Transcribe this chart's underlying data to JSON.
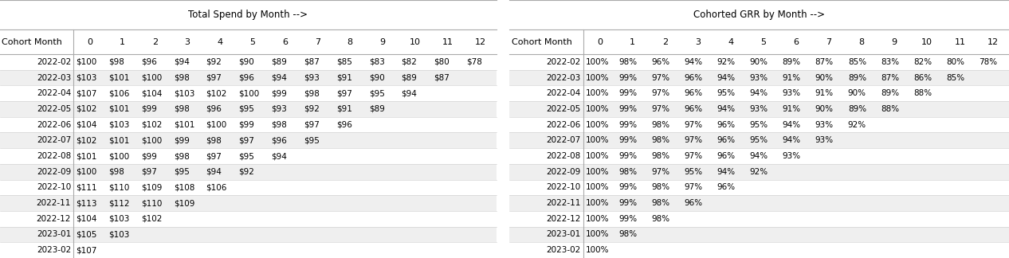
{
  "title_left": "Total Spend by Month -->",
  "title_right": "Cohorted GRR by Month -->",
  "col_header": [
    "Cohort Month",
    "0",
    "1",
    "2",
    "3",
    "4",
    "5",
    "6",
    "7",
    "8",
    "9",
    "10",
    "11",
    "12"
  ],
  "spend_rows": [
    [
      "2022-02",
      "$100",
      "$98",
      "$96",
      "$94",
      "$92",
      "$90",
      "$89",
      "$87",
      "$85",
      "$83",
      "$82",
      "$80",
      "$78"
    ],
    [
      "2022-03",
      "$103",
      "$101",
      "$100",
      "$98",
      "$97",
      "$96",
      "$94",
      "$93",
      "$91",
      "$90",
      "$89",
      "$87",
      ""
    ],
    [
      "2022-04",
      "$107",
      "$106",
      "$104",
      "$103",
      "$102",
      "$100",
      "$99",
      "$98",
      "$97",
      "$95",
      "$94",
      "",
      ""
    ],
    [
      "2022-05",
      "$102",
      "$101",
      "$99",
      "$98",
      "$96",
      "$95",
      "$93",
      "$92",
      "$91",
      "$89",
      "",
      "",
      ""
    ],
    [
      "2022-06",
      "$104",
      "$103",
      "$102",
      "$101",
      "$100",
      "$99",
      "$98",
      "$97",
      "$96",
      "",
      "",
      "",
      ""
    ],
    [
      "2022-07",
      "$102",
      "$101",
      "$100",
      "$99",
      "$98",
      "$97",
      "$96",
      "$95",
      "",
      "",
      "",
      "",
      ""
    ],
    [
      "2022-08",
      "$101",
      "$100",
      "$99",
      "$98",
      "$97",
      "$95",
      "$94",
      "",
      "",
      "",
      "",
      "",
      ""
    ],
    [
      "2022-09",
      "$100",
      "$98",
      "$97",
      "$95",
      "$94",
      "$92",
      "",
      "",
      "",
      "",
      "",
      "",
      ""
    ],
    [
      "2022-10",
      "$111",
      "$110",
      "$109",
      "$108",
      "$106",
      "",
      "",
      "",
      "",
      "",
      "",
      "",
      ""
    ],
    [
      "2022-11",
      "$113",
      "$112",
      "$110",
      "$109",
      "",
      "",
      "",
      "",
      "",
      "",
      "",
      "",
      ""
    ],
    [
      "2022-12",
      "$104",
      "$103",
      "$102",
      "",
      "",
      "",
      "",
      "",
      "",
      "",
      "",
      "",
      ""
    ],
    [
      "2023-01",
      "$105",
      "$103",
      "",
      "",
      "",
      "",
      "",
      "",
      "",
      "",
      "",
      "",
      ""
    ],
    [
      "2023-02",
      "$107",
      "",
      "",
      "",
      "",
      "",
      "",
      "",
      "",
      "",
      "",
      "",
      ""
    ]
  ],
  "grr_rows": [
    [
      "2022-02",
      "100%",
      "98%",
      "96%",
      "94%",
      "92%",
      "90%",
      "89%",
      "87%",
      "85%",
      "83%",
      "82%",
      "80%",
      "78%"
    ],
    [
      "2022-03",
      "100%",
      "99%",
      "97%",
      "96%",
      "94%",
      "93%",
      "91%",
      "90%",
      "89%",
      "87%",
      "86%",
      "85%",
      ""
    ],
    [
      "2022-04",
      "100%",
      "99%",
      "97%",
      "96%",
      "95%",
      "94%",
      "93%",
      "91%",
      "90%",
      "89%",
      "88%",
      "",
      ""
    ],
    [
      "2022-05",
      "100%",
      "99%",
      "97%",
      "96%",
      "94%",
      "93%",
      "91%",
      "90%",
      "89%",
      "88%",
      "",
      "",
      ""
    ],
    [
      "2022-06",
      "100%",
      "99%",
      "98%",
      "97%",
      "96%",
      "95%",
      "94%",
      "93%",
      "92%",
      "",
      "",
      "",
      ""
    ],
    [
      "2022-07",
      "100%",
      "99%",
      "98%",
      "97%",
      "96%",
      "95%",
      "94%",
      "93%",
      "",
      "",
      "",
      "",
      ""
    ],
    [
      "2022-08",
      "100%",
      "99%",
      "98%",
      "97%",
      "96%",
      "94%",
      "93%",
      "",
      "",
      "",
      "",
      "",
      ""
    ],
    [
      "2022-09",
      "100%",
      "98%",
      "97%",
      "95%",
      "94%",
      "92%",
      "",
      "",
      "",
      "",
      "",
      "",
      ""
    ],
    [
      "2022-10",
      "100%",
      "99%",
      "98%",
      "97%",
      "96%",
      "",
      "",
      "",
      "",
      "",
      "",
      "",
      ""
    ],
    [
      "2022-11",
      "100%",
      "99%",
      "98%",
      "96%",
      "",
      "",
      "",
      "",
      "",
      "",
      "",
      "",
      ""
    ],
    [
      "2022-12",
      "100%",
      "99%",
      "98%",
      "",
      "",
      "",
      "",
      "",
      "",
      "",
      "",
      "",
      ""
    ],
    [
      "2023-01",
      "100%",
      "98%",
      "",
      "",
      "",
      "",
      "",
      "",
      "",
      "",
      "",
      "",
      ""
    ],
    [
      "2023-02",
      "100%",
      "",
      "",
      "",
      "",
      "",
      "",
      "",
      "",
      "",
      "",
      "",
      ""
    ]
  ],
  "bg_color": "#ffffff",
  "line_color": "#aaaaaa",
  "text_color": "#000000",
  "title_fontsize": 8.5,
  "cell_fontsize": 7.5,
  "header_fontsize": 8.0,
  "fig_width": 12.66,
  "fig_height": 3.24,
  "dpi": 100
}
